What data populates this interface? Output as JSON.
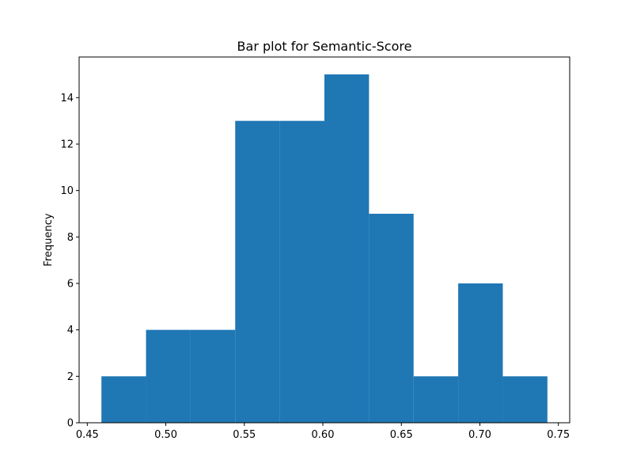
{
  "chart_data": {
    "type": "bar",
    "title": "Bar plot for Semantic-Score",
    "xlabel": "",
    "ylabel": "Frequency",
    "bin_edges": [
      0.459,
      0.4874,
      0.5158,
      0.5442,
      0.5726,
      0.601,
      0.6294,
      0.6578,
      0.6862,
      0.7146,
      0.743
    ],
    "values": [
      2,
      4,
      4,
      13,
      13,
      15,
      9,
      2,
      6,
      2
    ],
    "xlim": [
      0.4448,
      0.7572
    ],
    "ylim": [
      0,
      15.75
    ],
    "x_ticks": [
      0.45,
      0.5,
      0.55,
      0.6,
      0.65,
      0.7,
      0.75
    ],
    "x_tick_labels": [
      "0.45",
      "0.50",
      "0.55",
      "0.60",
      "0.65",
      "0.70",
      "0.75"
    ],
    "y_ticks": [
      0,
      2,
      4,
      6,
      8,
      10,
      12,
      14
    ],
    "y_tick_labels": [
      "0",
      "2",
      "4",
      "6",
      "8",
      "10",
      "12",
      "14"
    ],
    "bar_color": "#1f77b4",
    "grid": false,
    "legend": "none"
  }
}
